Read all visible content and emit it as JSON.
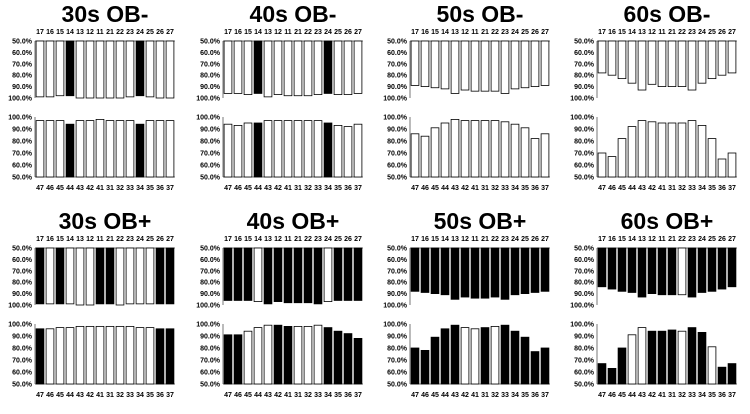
{
  "figure": {
    "colors": {
      "filled": "#000000",
      "empty": "#ffffff",
      "stroke": "#000000",
      "axis": "#555555"
    },
    "upper_teeth": [
      "17",
      "16",
      "15",
      "14",
      "13",
      "12",
      "11",
      "21",
      "22",
      "23",
      "24",
      "25",
      "26",
      "27"
    ],
    "lower_teeth": [
      "47",
      "46",
      "45",
      "44",
      "43",
      "42",
      "41",
      "31",
      "32",
      "33",
      "34",
      "35",
      "36",
      "37"
    ],
    "upper_ticks": [
      "50.0%",
      "60.0%",
      "70.0%",
      "80.0%",
      "90.0%",
      "100.0%"
    ],
    "lower_ticks": [
      "100.0%",
      "90.0%",
      "80.0%",
      "70.0%",
      "60.0%",
      "50.0%"
    ]
  },
  "chart_data": [
    {
      "type": "bar",
      "title": "30s OB-",
      "upper": {
        "categories": [
          "17",
          "16",
          "15",
          "14",
          "13",
          "12",
          "11",
          "21",
          "22",
          "23",
          "24",
          "25",
          "26",
          "27"
        ],
        "values": [
          99,
          99,
          98,
          98,
          100,
          100,
          100,
          100,
          100,
          99,
          98,
          99,
          100,
          100
        ],
        "filled": [
          false,
          false,
          false,
          true,
          false,
          false,
          false,
          false,
          false,
          false,
          true,
          false,
          false,
          false
        ],
        "ylim": [
          50,
          100
        ]
      },
      "lower": {
        "categories": [
          "47",
          "46",
          "45",
          "44",
          "43",
          "42",
          "41",
          "31",
          "32",
          "33",
          "34",
          "35",
          "36",
          "37"
        ],
        "values": [
          97,
          97,
          97,
          94,
          97,
          97,
          98,
          97,
          97,
          97,
          94,
          97,
          97,
          97
        ],
        "filled": [
          false,
          false,
          false,
          true,
          false,
          false,
          false,
          false,
          false,
          false,
          true,
          false,
          false,
          false
        ],
        "ylim": [
          50,
          100
        ]
      }
    },
    {
      "type": "bar",
      "title": "40s OB-",
      "upper": {
        "categories": [
          "17",
          "16",
          "15",
          "14",
          "13",
          "12",
          "11",
          "21",
          "22",
          "23",
          "24",
          "25",
          "26",
          "27"
        ],
        "values": [
          96,
          96,
          97,
          96,
          99,
          97,
          98,
          98,
          98,
          97,
          96,
          97,
          97,
          96
        ],
        "filled": [
          false,
          false,
          false,
          true,
          false,
          false,
          false,
          false,
          false,
          false,
          true,
          false,
          false,
          false
        ],
        "ylim": [
          50,
          100
        ]
      },
      "lower": {
        "categories": [
          "47",
          "46",
          "45",
          "44",
          "43",
          "42",
          "41",
          "31",
          "32",
          "33",
          "34",
          "35",
          "36",
          "37"
        ],
        "values": [
          94,
          93,
          95,
          95,
          97,
          97,
          97,
          97,
          97,
          97,
          95,
          93,
          92,
          94
        ],
        "filled": [
          false,
          false,
          false,
          true,
          false,
          false,
          false,
          false,
          false,
          false,
          true,
          false,
          false,
          false
        ],
        "ylim": [
          50,
          100
        ]
      }
    },
    {
      "type": "bar",
      "title": "50s OB-",
      "upper": {
        "categories": [
          "17",
          "16",
          "15",
          "14",
          "13",
          "12",
          "11",
          "21",
          "22",
          "23",
          "24",
          "25",
          "26",
          "27"
        ],
        "values": [
          89,
          90,
          91,
          92,
          96,
          93,
          94,
          94,
          94,
          96,
          92,
          91,
          90,
          89
        ],
        "filled": [
          false,
          false,
          false,
          false,
          false,
          false,
          false,
          false,
          false,
          false,
          false,
          false,
          false,
          false
        ],
        "ylim": [
          50,
          100
        ]
      },
      "lower": {
        "categories": [
          "47",
          "46",
          "45",
          "44",
          "43",
          "42",
          "41",
          "31",
          "32",
          "33",
          "34",
          "35",
          "36",
          "37"
        ],
        "values": [
          86,
          84,
          91,
          95,
          98,
          97,
          97,
          97,
          97,
          96,
          94,
          91,
          82,
          86
        ],
        "filled": [
          false,
          false,
          false,
          false,
          false,
          false,
          false,
          false,
          false,
          false,
          false,
          false,
          false,
          false
        ],
        "ylim": [
          50,
          100
        ]
      }
    },
    {
      "type": "bar",
      "title": "60s OB-",
      "upper": {
        "categories": [
          "17",
          "16",
          "15",
          "14",
          "13",
          "12",
          "11",
          "21",
          "22",
          "23",
          "24",
          "25",
          "26",
          "27"
        ],
        "values": [
          78,
          80,
          83,
          87,
          93,
          88,
          90,
          90,
          90,
          93,
          87,
          83,
          80,
          78
        ],
        "filled": [
          false,
          false,
          false,
          false,
          false,
          false,
          false,
          false,
          false,
          false,
          false,
          false,
          false,
          false
        ],
        "ylim": [
          50,
          100
        ]
      },
      "lower": {
        "categories": [
          "47",
          "46",
          "45",
          "44",
          "43",
          "42",
          "41",
          "31",
          "32",
          "33",
          "34",
          "35",
          "36",
          "37"
        ],
        "values": [
          70,
          67,
          82,
          92,
          97,
          96,
          95,
          95,
          95,
          97,
          93,
          82,
          65,
          70
        ],
        "filled": [
          false,
          false,
          false,
          false,
          false,
          false,
          false,
          false,
          false,
          false,
          false,
          false,
          false,
          false
        ],
        "ylim": [
          50,
          100
        ]
      }
    },
    {
      "type": "bar",
      "title": "30s OB+",
      "upper": {
        "categories": [
          "17",
          "16",
          "15",
          "14",
          "13",
          "12",
          "11",
          "21",
          "22",
          "23",
          "24",
          "25",
          "26",
          "27"
        ],
        "values": [
          99,
          99,
          99,
          99,
          100,
          100,
          99,
          99,
          100,
          99,
          99,
          99,
          99,
          99
        ],
        "filled": [
          true,
          false,
          true,
          false,
          false,
          false,
          true,
          true,
          false,
          false,
          false,
          false,
          true,
          true
        ],
        "ylim": [
          50,
          100
        ]
      },
      "lower": {
        "categories": [
          "47",
          "46",
          "45",
          "44",
          "43",
          "42",
          "41",
          "31",
          "32",
          "33",
          "34",
          "35",
          "36",
          "37"
        ],
        "values": [
          96,
          96,
          97,
          97,
          98,
          98,
          98,
          98,
          98,
          98,
          97,
          97,
          96,
          96
        ],
        "filled": [
          true,
          false,
          false,
          false,
          false,
          false,
          false,
          false,
          false,
          false,
          false,
          false,
          true,
          true
        ],
        "ylim": [
          50,
          100
        ]
      }
    },
    {
      "type": "bar",
      "title": "40s OB+",
      "upper": {
        "categories": [
          "17",
          "16",
          "15",
          "14",
          "13",
          "12",
          "11",
          "21",
          "22",
          "23",
          "24",
          "25",
          "26",
          "27"
        ],
        "values": [
          96,
          96,
          96,
          97,
          99,
          97,
          98,
          98,
          98,
          99,
          97,
          96,
          96,
          96
        ],
        "filled": [
          true,
          true,
          true,
          false,
          true,
          true,
          true,
          true,
          true,
          true,
          false,
          true,
          true,
          true
        ],
        "ylim": [
          50,
          100
        ]
      },
      "lower": {
        "categories": [
          "47",
          "46",
          "45",
          "44",
          "43",
          "42",
          "41",
          "31",
          "32",
          "33",
          "34",
          "35",
          "36",
          "37"
        ],
        "values": [
          91,
          91,
          94,
          97,
          99,
          99,
          98,
          98,
          98,
          99,
          97,
          94,
          92,
          88
        ],
        "filled": [
          true,
          true,
          false,
          false,
          false,
          true,
          true,
          false,
          false,
          false,
          true,
          true,
          true,
          true
        ],
        "ylim": [
          50,
          100
        ]
      }
    },
    {
      "type": "bar",
      "title": "50s OB+",
      "upper": {
        "categories": [
          "17",
          "16",
          "15",
          "14",
          "13",
          "12",
          "11",
          "21",
          "22",
          "23",
          "24",
          "25",
          "26",
          "27"
        ],
        "values": [
          88,
          89,
          90,
          91,
          95,
          93,
          94,
          94,
          93,
          95,
          91,
          90,
          89,
          88
        ],
        "filled": [
          true,
          true,
          true,
          true,
          true,
          true,
          true,
          true,
          true,
          true,
          true,
          true,
          true,
          true
        ],
        "ylim": [
          50,
          100
        ]
      },
      "lower": {
        "categories": [
          "47",
          "46",
          "45",
          "44",
          "43",
          "42",
          "41",
          "31",
          "32",
          "33",
          "34",
          "35",
          "36",
          "37"
        ],
        "values": [
          80,
          78,
          89,
          96,
          99,
          97,
          96,
          97,
          98,
          99,
          94,
          89,
          77,
          80
        ],
        "filled": [
          true,
          true,
          true,
          true,
          true,
          false,
          false,
          true,
          false,
          true,
          true,
          true,
          true,
          true
        ],
        "ylim": [
          50,
          100
        ]
      }
    },
    {
      "type": "bar",
      "title": "60s OB+",
      "upper": {
        "categories": [
          "17",
          "16",
          "15",
          "14",
          "13",
          "12",
          "11",
          "21",
          "22",
          "23",
          "24",
          "25",
          "26",
          "27"
        ],
        "values": [
          84,
          86,
          88,
          89,
          93,
          90,
          91,
          91,
          91,
          93,
          89,
          88,
          86,
          84
        ],
        "filled": [
          true,
          true,
          true,
          true,
          true,
          true,
          true,
          true,
          false,
          true,
          true,
          true,
          true,
          true
        ],
        "ylim": [
          50,
          100
        ]
      },
      "lower": {
        "categories": [
          "47",
          "46",
          "45",
          "44",
          "43",
          "42",
          "41",
          "31",
          "32",
          "33",
          "34",
          "35",
          "36",
          "37"
        ],
        "values": [
          67,
          63,
          80,
          91,
          97,
          94,
          94,
          95,
          94,
          97,
          93,
          81,
          64,
          67
        ],
        "filled": [
          true,
          true,
          true,
          false,
          false,
          true,
          true,
          true,
          false,
          true,
          true,
          false,
          true,
          true
        ],
        "ylim": [
          50,
          100
        ]
      }
    }
  ]
}
